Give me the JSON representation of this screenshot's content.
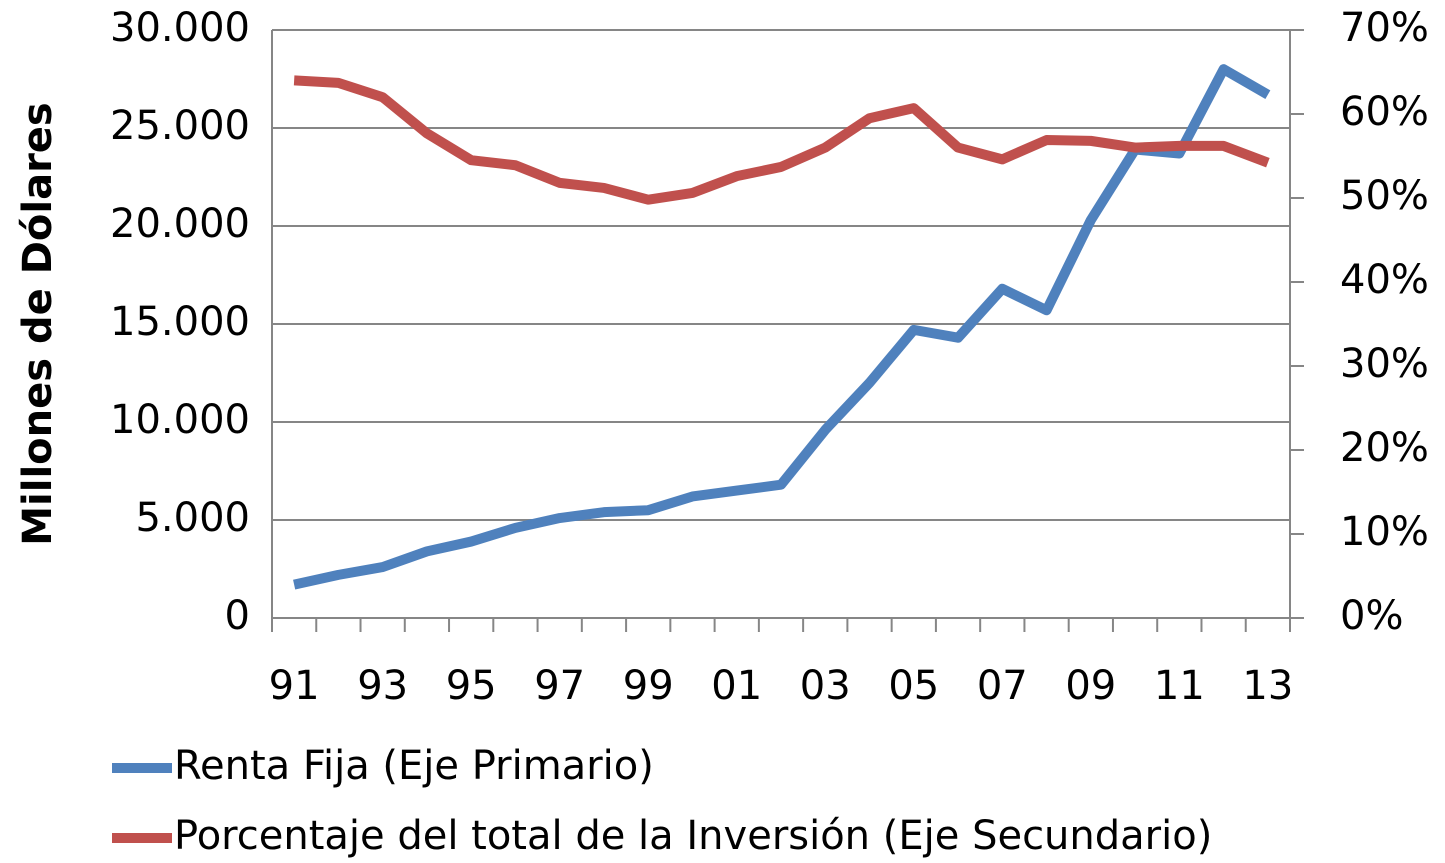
{
  "chart_data": {
    "type": "line",
    "y_label": "Millones de Dólares",
    "categories": [
      "91",
      null,
      "93",
      null,
      "95",
      null,
      "97",
      null,
      "99",
      null,
      "01",
      null,
      "03",
      null,
      "05",
      null,
      "07",
      null,
      "09",
      null,
      "11",
      null,
      "13"
    ],
    "series": [
      {
        "name": "Renta Fija (Eje Primario)",
        "color": "#4f81bd",
        "values": [
          1700,
          2200,
          2600,
          3400,
          3900,
          4600,
          5100,
          5400,
          5500,
          6200,
          6500,
          6800,
          9600,
          12000,
          14700,
          14300,
          16800,
          15700,
          20300,
          23900,
          23700,
          28000,
          26700
        ]
      },
      {
        "name": "Porcentaje del total de la Inversión (Eje Secundario)",
        "color": "#c0504d",
        "axis": "y2",
        "values": [
          64.0,
          63.7,
          62.0,
          57.7,
          54.5,
          53.9,
          51.8,
          51.2,
          49.8,
          50.6,
          52.6,
          53.7,
          56.0,
          59.5,
          60.7,
          56.0,
          54.6,
          56.9,
          56.8,
          56.0,
          56.2,
          56.2,
          54.2
        ]
      }
    ],
    "ylim": [
      0,
      30000
    ],
    "yticks": [
      0,
      {
        "value": 5000,
        "label": "5.000"
      },
      {
        "value": 10000,
        "label": "10.000"
      },
      {
        "value": 15000,
        "label": "15.000"
      },
      {
        "value": 20000,
        "label": "20.000"
      },
      {
        "value": 25000,
        "label": "25.000"
      },
      {
        "value": 30000,
        "label": "30.000"
      }
    ],
    "y2lim": [
      0,
      70
    ],
    "y2ticks": [
      {
        "value": 0,
        "label": "0%"
      },
      {
        "value": 10,
        "label": "10%"
      },
      {
        "value": 20,
        "label": "20%"
      },
      {
        "value": 30,
        "label": "30%"
      },
      {
        "value": 40,
        "label": "40%"
      },
      {
        "value": 50,
        "label": "50%"
      },
      {
        "value": 60,
        "label": "60%"
      },
      {
        "value": 70,
        "label": "70%"
      }
    ],
    "grid": true,
    "legend": "bottom"
  }
}
